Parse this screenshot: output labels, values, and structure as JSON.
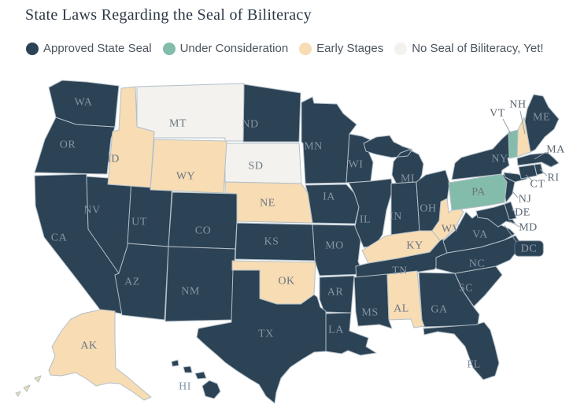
{
  "header": {
    "title": "State Laws Regarding the Seal of Biliteracy"
  },
  "legend": [
    {
      "key": "approved",
      "label": "Approved State Seal",
      "color": "#2c4255"
    },
    {
      "key": "consideration",
      "label": "Under Consideration",
      "color": "#84bcab"
    },
    {
      "key": "early",
      "label": "Early Stages",
      "color": "#f7dcb4"
    },
    {
      "key": "none",
      "label": "No Seal of Biliteracy, Yet!",
      "color": "#f3f2ef"
    }
  ],
  "map": {
    "dc_label": "DC"
  },
  "chart_data": {
    "type": "choropleth_map",
    "title": "State Laws Regarding the Seal of Biliteracy",
    "legend_position": "top",
    "categories": [
      {
        "label": "Approved State Seal",
        "color": "#2c4255",
        "states": [
          "WA",
          "OR",
          "CA",
          "NV",
          "UT",
          "AZ",
          "CO",
          "NM",
          "ND",
          "KS",
          "TX",
          "MN",
          "IA",
          "MO",
          "AR",
          "LA",
          "WI",
          "IL",
          "MI",
          "IN",
          "OH",
          "TN",
          "MS",
          "GA",
          "FL",
          "SC",
          "NC",
          "VA",
          "MD",
          "DE",
          "NJ",
          "NY",
          "CT",
          "RI",
          "MA",
          "ME",
          "HI",
          "DC"
        ]
      },
      {
        "label": "Under Consideration",
        "color": "#84bcab",
        "states": [
          "VT",
          "PA"
        ]
      },
      {
        "label": "Early Stages",
        "color": "#f7dcb4",
        "states": [
          "ID",
          "WY",
          "NE",
          "OK",
          "KY",
          "WV",
          "AL",
          "NH",
          "AK"
        ]
      },
      {
        "label": "No Seal of Biliteracy, Yet!",
        "color": "#f3f2ef",
        "states": [
          "MT",
          "SD"
        ]
      }
    ],
    "state_values": {
      "WA": "approved",
      "OR": "approved",
      "CA": "approved",
      "NV": "approved",
      "ID": "early",
      "UT": "approved",
      "AZ": "approved",
      "MT": "none",
      "WY": "early",
      "CO": "approved",
      "NM": "approved",
      "ND": "approved",
      "SD": "none",
      "NE": "early",
      "KS": "approved",
      "OK": "early",
      "TX": "approved",
      "MN": "approved",
      "IA": "approved",
      "MO": "approved",
      "AR": "approved",
      "LA": "approved",
      "WI": "approved",
      "IL": "approved",
      "IN": "approved",
      "MI": "approved",
      "OH": "approved",
      "KY": "early",
      "TN": "approved",
      "MS": "approved",
      "AL": "early",
      "GA": "approved",
      "FL": "approved",
      "SC": "approved",
      "NC": "approved",
      "VA": "approved",
      "WV": "early",
      "MD": "approved",
      "DE": "approved",
      "NJ": "approved",
      "PA": "consideration",
      "NY": "approved",
      "CT": "approved",
      "RI": "approved",
      "MA": "approved",
      "VT": "consideration",
      "NH": "early",
      "ME": "approved",
      "AK": "early",
      "HI": "approved",
      "DC": "approved"
    }
  }
}
